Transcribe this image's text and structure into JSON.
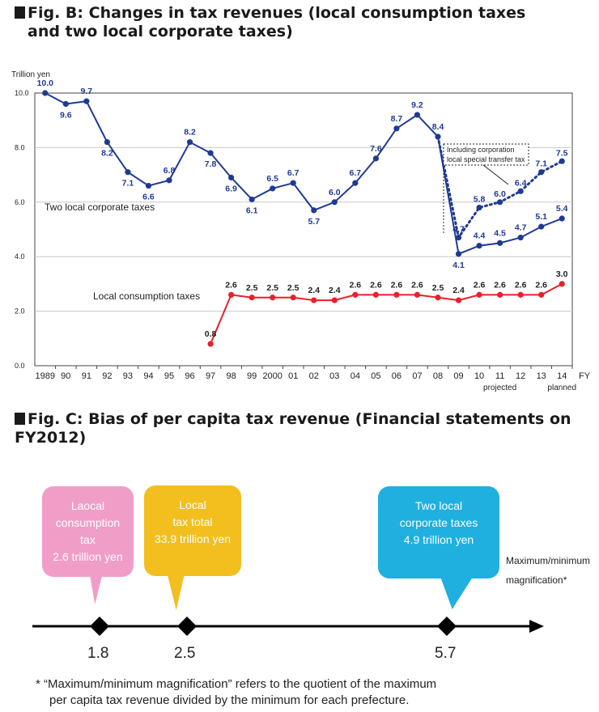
{
  "figB": {
    "title_line1": "Fig. B: Changes in tax revenues (local consumption taxes",
    "title_line2": "and two local corporate taxes)"
  },
  "chart_data": [
    {
      "type": "line",
      "ylabel": "Trillion yen",
      "ylim": [
        0,
        10
      ],
      "yticks": [
        "0.0",
        "2.0",
        "4.0",
        "6.0",
        "8.0",
        "10.0"
      ],
      "x_unit": "FY",
      "categories": [
        "1989",
        "90",
        "91",
        "92",
        "93",
        "94",
        "95",
        "96",
        "97",
        "98",
        "99",
        "2000",
        "01",
        "02",
        "03",
        "04",
        "05",
        "06",
        "07",
        "08",
        "09",
        "10",
        "11",
        "12",
        "13",
        "14"
      ],
      "x_notes": [
        {
          "category": "11",
          "text": "projected"
        },
        {
          "category": "14",
          "text": "planned"
        }
      ],
      "grid": "horizontal",
      "series": [
        {
          "name": "Two local corporate taxes",
          "color": "#1f3a93",
          "style": "solid",
          "values": [
            10.0,
            9.6,
            9.7,
            8.2,
            7.1,
            6.6,
            6.8,
            8.2,
            7.8,
            6.9,
            6.1,
            6.5,
            6.7,
            5.7,
            6.0,
            6.7,
            7.6,
            8.7,
            9.2,
            8.4,
            4.1,
            4.4,
            4.5,
            4.7,
            5.1,
            5.4
          ],
          "labels": [
            "10.0",
            "9.6",
            "9.7",
            "8.2",
            "7.1",
            "6.6",
            "6.8",
            "8.2",
            "7.8",
            "6.9",
            "6.1",
            "6.5",
            "6.7",
            "5.7",
            "6.0",
            "6.7",
            "7.6",
            "8.7",
            "9.2",
            "8.4",
            "4.1",
            "4.4",
            "4.5",
            "4.7",
            "5.1",
            "5.4"
          ]
        },
        {
          "name": "Including corporation local special transfer tax",
          "color": "#1f3a93",
          "style": "dotted",
          "x": [
            "08",
            "09",
            "10",
            "11",
            "12",
            "13",
            "14"
          ],
          "values": [
            8.4,
            4.7,
            5.8,
            6.0,
            6.4,
            7.1,
            7.5
          ],
          "labels": [
            "",
            "4.7",
            "5.8",
            "6.0",
            "6.4",
            "7.1",
            "7.5"
          ]
        },
        {
          "name": "Local consumption taxes",
          "color": "#e8202a",
          "style": "solid",
          "x": [
            "97",
            "98",
            "99",
            "2000",
            "01",
            "02",
            "03",
            "04",
            "05",
            "06",
            "07",
            "08",
            "09",
            "10",
            "11",
            "12",
            "13",
            "14"
          ],
          "values": [
            0.8,
            2.6,
            2.5,
            2.5,
            2.5,
            2.4,
            2.4,
            2.6,
            2.6,
            2.6,
            2.6,
            2.5,
            2.4,
            2.6,
            2.6,
            2.6,
            2.6,
            3.0
          ],
          "labels": [
            "0.8",
            "2.6",
            "2.5",
            "2.5",
            "2.5",
            "2.4",
            "2.4",
            "2.6",
            "2.6",
            "2.6",
            "2.6",
            "2.5",
            "2.4",
            "2.6",
            "2.6",
            "2.6",
            "2.6",
            "3.0"
          ]
        }
      ],
      "annotations": {
        "corporate_label": "Two local corporate taxes",
        "consumption_label": "Local consumption taxes",
        "transfer_box_line1": "Including corporation",
        "transfer_box_line2": "local special transfer tax"
      }
    },
    {
      "type": "number-line",
      "title": "Fig. C: Bias of per capita tax revenue (Financial statements on FY2012)",
      "points": [
        {
          "name": "Laocal consumption tax",
          "value": 1.8,
          "amount": "2.6 trillion yen",
          "color": "#f09ec7"
        },
        {
          "name": "Local tax total",
          "value": 2.5,
          "amount": "33.9 trillion yen",
          "color": "#f2bf1e"
        },
        {
          "name": "Two local corporate taxes",
          "value": 5.7,
          "amount": "4.9 trillion yen",
          "color": "#1fb0e0"
        }
      ],
      "axis_label": "Maximum/minimum magnification*"
    }
  ],
  "figC": {
    "title": "Fig. C: Bias of per capita tax revenue (Financial statements on FY2012)",
    "bubbles": {
      "consumption": {
        "line1": "Laocal",
        "line2": "consumption",
        "line3": "tax",
        "line4": "2.6 trillion yen"
      },
      "local": {
        "line1": "Local",
        "line2": "tax total",
        "line3": "33.9 trillion yen"
      },
      "corporate": {
        "line1": "Two local",
        "line2": "corporate taxes",
        "line3": "4.9 trillion yen"
      }
    },
    "values": [
      "1.8",
      "2.5",
      "5.7"
    ],
    "mm_line1": "Maximum/minimum",
    "mm_line2": "magnification*",
    "footnote_line1": "* “Maximum/minimum magnification” refers to the quotient of the maximum",
    "footnote_line2": "per capita tax revenue divided by the minimum for each prefecture."
  }
}
